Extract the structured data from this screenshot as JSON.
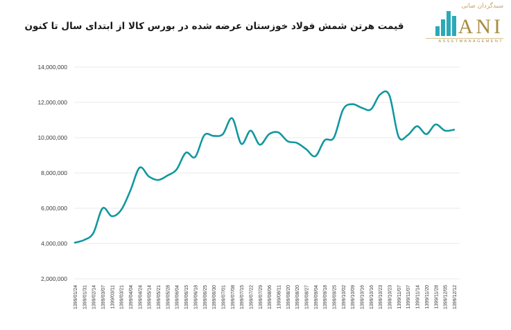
{
  "header": {
    "title": "قیمت هرتن شمش فولاد خوزستان عرضه شده در بورس کالا از ابتدای سال تا کنون"
  },
  "logo": {
    "persian_text": "سبدگردان صانی",
    "brand": "ANI",
    "subtitle": "ASSETMANAGEMENT",
    "bar_color": "#2aa9b8",
    "gold_color": "#a98b3f"
  },
  "chart_data": {
    "type": "line",
    "title": "قیمت هرتن شمش فولاد خوزستان عرضه شده در بورس کالا از ابتدای سال تا کنون",
    "xlabel": "",
    "ylabel": "",
    "ylim": [
      2000000,
      14000000
    ],
    "ytick_step": 2000000,
    "ytick_labels": [
      "2,000,000",
      "4,000,000",
      "6,000,000",
      "8,000,000",
      "10,000,000",
      "12,000,000",
      "14,000,000"
    ],
    "grid": true,
    "legend": false,
    "line_color": "#12979f",
    "grid_color": "#e8e8e8",
    "label_color": "#3a3a3a",
    "categories": [
      "1399/01/24",
      "1399/01/31",
      "1399/02/14",
      "1399/03/07",
      "1399/03/11",
      "1399/03/21",
      "1399/04/04",
      "1399/04/24",
      "1399/05/14",
      "1399/05/21",
      "1399/05/28",
      "1399/06/04",
      "1399/06/15",
      "1399/06/18",
      "1399/06/25",
      "1399/06/30",
      "1399/07/01",
      "1399/07/08",
      "1399/07/15",
      "1399/07/22",
      "1399/07/29",
      "1399/08/06",
      "1399/08/11",
      "1399/08/20",
      "1399/08/20",
      "1399/08/27",
      "1399/09/04",
      "1399/09/18",
      "1399/09/25",
      "1399/10/02",
      "1399/10/09",
      "1399/10/16",
      "1399/10/16",
      "1399/10/23",
      "1399/10/23",
      "1399/11/07",
      "1399/11/07",
      "1399/11/14",
      "1399/11/20",
      "1399/11/28",
      "1399/12/05",
      "1399/12/12"
    ],
    "values": [
      4050000,
      4200000,
      4600000,
      6000000,
      5550000,
      5900000,
      7000000,
      8300000,
      7800000,
      7600000,
      7850000,
      8200000,
      9150000,
      8900000,
      10150000,
      10100000,
      10200000,
      11100000,
      9650000,
      10400000,
      9600000,
      10200000,
      10300000,
      9800000,
      9700000,
      9350000,
      8950000,
      9850000,
      10000000,
      11600000,
      11900000,
      11700000,
      11600000,
      12450000,
      12400000,
      10050000,
      10150000,
      10650000,
      10200000,
      10750000,
      10400000,
      10450000
    ]
  }
}
